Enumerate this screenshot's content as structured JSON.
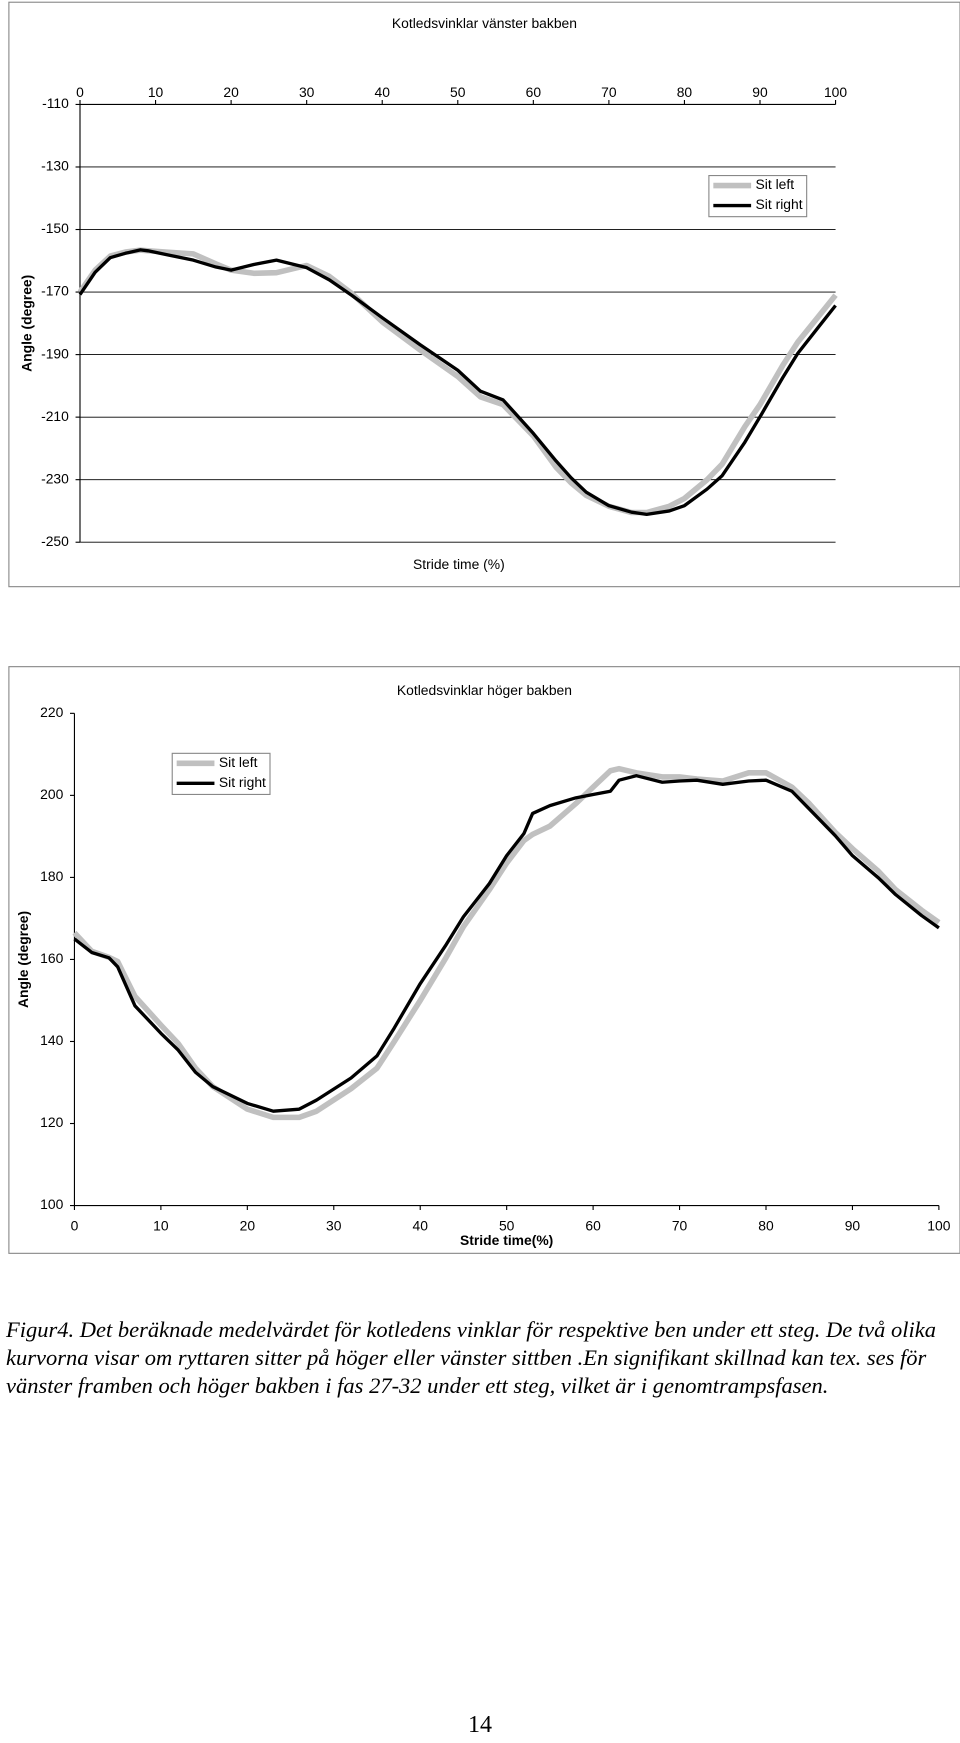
{
  "chart_data": [
    {
      "type": "line",
      "title": "Kotledsvinklar vänster bakben",
      "xlabel": "Stride time (%)",
      "ylabel": "Angle (degree)",
      "x": [
        0,
        2,
        4,
        6,
        8,
        9,
        12,
        15,
        18,
        20,
        23,
        26,
        30,
        33,
        36,
        40,
        45,
        50,
        53,
        56,
        60,
        63,
        65,
        67,
        70,
        73,
        75,
        78,
        80,
        83,
        85,
        88,
        90,
        93,
        95,
        98,
        100
      ],
      "series": [
        {
          "name": "Sit left",
          "color": "#c0c0c0",
          "values": [
            -170,
            -163,
            -158.5,
            -157.2,
            -156.6,
            -156.8,
            -157.3,
            -157.8,
            -161,
            -163,
            -164,
            -163.8,
            -161.5,
            -165,
            -170.5,
            -179.5,
            -188.5,
            -197,
            -203.5,
            -206,
            -216,
            -226,
            -231,
            -235,
            -238.5,
            -240.5,
            -240.5,
            -238.5,
            -236,
            -230,
            -225,
            -213,
            -206,
            -193.5,
            -186,
            -177,
            -171
          ]
        },
        {
          "name": "Sit right",
          "color": "#000000",
          "values": [
            -170.8,
            -163.7,
            -159,
            -157.6,
            -156.5,
            -156.8,
            -158.3,
            -159.8,
            -162,
            -163,
            -161.2,
            -159.8,
            -162.2,
            -166.1,
            -171.1,
            -178.2,
            -186.8,
            -195,
            -201.7,
            -204.5,
            -215.2,
            -224,
            -229.4,
            -234,
            -238.3,
            -240.4,
            -241.1,
            -240,
            -238.3,
            -233,
            -228.7,
            -218,
            -209.9,
            -197.4,
            -189.6,
            -180.4,
            -174.3
          ]
        }
      ],
      "xlim": [
        0,
        100
      ],
      "xticks": [
        0,
        10,
        20,
        30,
        40,
        50,
        60,
        70,
        80,
        90,
        100
      ],
      "ylim": [
        -250,
        -110
      ],
      "yticks": [
        -110,
        -130,
        -150,
        -170,
        -190,
        -210,
        -230,
        -250
      ],
      "grid": true,
      "legend": "upper right"
    },
    {
      "type": "line",
      "title": "Kotledsvinklar höger bakben",
      "xlabel": "Stride time(%)",
      "ylabel": "Angle (degree)",
      "x": [
        0,
        2,
        4,
        5,
        7,
        10,
        12,
        14,
        16,
        20,
        23,
        26,
        28,
        32,
        35,
        37,
        40,
        43,
        45,
        48,
        50,
        52,
        53,
        55,
        58,
        60,
        62,
        63,
        65,
        68,
        70,
        72,
        75,
        78,
        80,
        83,
        85,
        88,
        90,
        93,
        95,
        98,
        100
      ],
      "series": [
        {
          "name": "Sit left",
          "color": "#c0c0c0",
          "values": [
            166.5,
            162,
            160.5,
            159.5,
            151,
            144,
            139.5,
            133.5,
            129,
            123.5,
            121.5,
            121.5,
            123,
            128.5,
            133.5,
            140,
            150,
            160.5,
            168,
            177,
            183.5,
            189,
            190.5,
            192.5,
            198,
            202,
            206,
            206.5,
            205.5,
            204.5,
            204.5,
            204,
            203.5,
            205.5,
            205.5,
            202,
            198,
            191,
            187,
            181.5,
            177,
            172,
            169
          ]
        },
        {
          "name": "Sit right",
          "color": "#000000",
          "values": [
            165,
            161.7,
            160.4,
            158.2,
            148.7,
            142,
            137.9,
            132.5,
            129,
            124.9,
            123,
            123.5,
            125.7,
            131.1,
            136.5,
            143.3,
            154.1,
            163.6,
            170.4,
            178.5,
            185.3,
            190.7,
            195.6,
            197.5,
            199.4,
            200.2,
            201,
            203.7,
            204.8,
            203.2,
            203.5,
            203.7,
            202.7,
            203.5,
            203.7,
            201,
            196.7,
            190.2,
            185.3,
            179.9,
            175.8,
            170.7,
            167.7
          ]
        }
      ],
      "xlim": [
        0,
        100
      ],
      "xticks": [
        0,
        10,
        20,
        30,
        40,
        50,
        60,
        70,
        80,
        90,
        100
      ],
      "ylim": [
        100,
        220
      ],
      "yticks": [
        100,
        120,
        140,
        160,
        180,
        200,
        220
      ],
      "grid": false,
      "legend": "upper left"
    }
  ],
  "caption": "Figur4. Det beräknade medelvärdet för kotledens vinklar för respektive ben under ett steg. De två olika kurvorna visar om ryttaren sitter på höger eller vänster sittben .En signifikant skillnad kan tex. ses för vänster framben och höger bakben i fas 27-32 under ett steg, vilket är i genomtrampsfasen.",
  "page_number": "14"
}
